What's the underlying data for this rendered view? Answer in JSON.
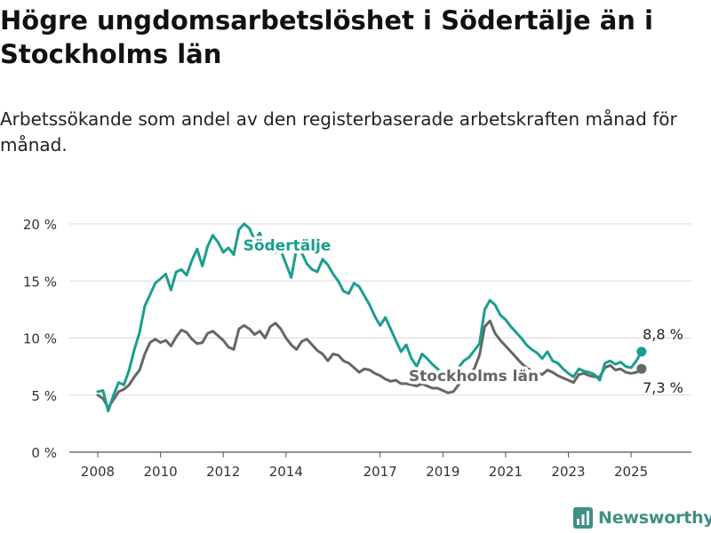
{
  "header": {
    "title": "Högre ungdomsarbetslöshet i Södertälje än i Stockholms län",
    "subtitle": "Arbetssökande som andel av den registerbaserade arbetskraften månad för månad."
  },
  "brand": {
    "name": "Newsworthy",
    "icon": "bar-chart-logo-icon",
    "color": "#3f8f83"
  },
  "chart_data": {
    "type": "line",
    "title": "Högre ungdomsarbetslöshet i Södertälje än i Stockholms län",
    "subtitle": "Arbetssökande som andel av den registerbaserade arbetskraften månad för månad.",
    "xlabel": "",
    "ylabel": "",
    "ylim": [
      0,
      21
    ],
    "y_unit": "%",
    "yticks": [
      0,
      5,
      10,
      15,
      20
    ],
    "ytick_labels": [
      "0 %",
      "5 %",
      "10 %",
      "15 %",
      "20 %"
    ],
    "xticks": [
      2008,
      2010,
      2012,
      2014,
      2017,
      2019,
      2021,
      2023,
      2025
    ],
    "xtick_labels": [
      "2008",
      "2010",
      "2012",
      "2014",
      "2017",
      "2019",
      "2021",
      "2023",
      "2025"
    ],
    "grid": true,
    "legend": "inline labels",
    "series": [
      {
        "name": "Södertälje",
        "color": "#1a9e8f",
        "end_label": "8,8 %",
        "points": [
          [
            "2008-01",
            5.3
          ],
          [
            "2008-03",
            5.4
          ],
          [
            "2008-05",
            3.6
          ],
          [
            "2008-07",
            5.0
          ],
          [
            "2008-09",
            6.1
          ],
          [
            "2008-11",
            5.9
          ],
          [
            "2009-01",
            7.2
          ],
          [
            "2009-03",
            9.0
          ],
          [
            "2009-05",
            10.5
          ],
          [
            "2009-07",
            12.8
          ],
          [
            "2009-09",
            13.8
          ],
          [
            "2009-11",
            14.8
          ],
          [
            "2010-01",
            15.2
          ],
          [
            "2010-03",
            15.6
          ],
          [
            "2010-05",
            14.2
          ],
          [
            "2010-07",
            15.8
          ],
          [
            "2010-09",
            16.0
          ],
          [
            "2010-11",
            15.5
          ],
          [
            "2011-01",
            16.8
          ],
          [
            "2011-03",
            17.8
          ],
          [
            "2011-05",
            16.3
          ],
          [
            "2011-07",
            18.0
          ],
          [
            "2011-09",
            19.0
          ],
          [
            "2011-11",
            18.4
          ],
          [
            "2012-01",
            17.5
          ],
          [
            "2012-03",
            17.9
          ],
          [
            "2012-05",
            17.3
          ],
          [
            "2012-07",
            19.5
          ],
          [
            "2012-09",
            20.0
          ],
          [
            "2012-11",
            19.6
          ],
          [
            "2013-01",
            18.6
          ],
          [
            "2013-03",
            19.2
          ],
          [
            "2013-05",
            18.0
          ],
          [
            "2013-07",
            18.6
          ],
          [
            "2013-09",
            17.5
          ],
          [
            "2013-11",
            17.7
          ],
          [
            "2014-01",
            16.5
          ],
          [
            "2014-03",
            15.3
          ],
          [
            "2014-05",
            17.8
          ],
          [
            "2014-07",
            17.5
          ],
          [
            "2014-09",
            16.5
          ],
          [
            "2014-11",
            16.0
          ],
          [
            "2015-01",
            15.8
          ],
          [
            "2015-03",
            16.9
          ],
          [
            "2015-05",
            16.4
          ],
          [
            "2015-07",
            15.6
          ],
          [
            "2015-09",
            15.0
          ],
          [
            "2015-11",
            14.1
          ],
          [
            "2016-01",
            13.9
          ],
          [
            "2016-03",
            14.8
          ],
          [
            "2016-05",
            14.5
          ],
          [
            "2016-07",
            13.7
          ],
          [
            "2016-09",
            12.9
          ],
          [
            "2016-11",
            11.9
          ],
          [
            "2017-01",
            11.1
          ],
          [
            "2017-03",
            11.8
          ],
          [
            "2017-05",
            10.8
          ],
          [
            "2017-07",
            9.8
          ],
          [
            "2017-09",
            8.8
          ],
          [
            "2017-11",
            9.4
          ],
          [
            "2018-01",
            8.2
          ],
          [
            "2018-03",
            7.5
          ],
          [
            "2018-05",
            8.6
          ],
          [
            "2018-07",
            8.2
          ],
          [
            "2018-09",
            7.7
          ],
          [
            "2018-11",
            7.3
          ],
          [
            "2019-01",
            6.8
          ],
          [
            "2019-03",
            6.2
          ],
          [
            "2019-05",
            6.5
          ],
          [
            "2019-07",
            7.4
          ],
          [
            "2019-09",
            8.0
          ],
          [
            "2019-11",
            8.3
          ],
          [
            "2020-01",
            8.9
          ],
          [
            "2020-03",
            9.5
          ],
          [
            "2020-05",
            12.5
          ],
          [
            "2020-07",
            13.3
          ],
          [
            "2020-09",
            12.9
          ],
          [
            "2020-11",
            12.0
          ],
          [
            "2021-01",
            11.6
          ],
          [
            "2021-03",
            11.0
          ],
          [
            "2021-05",
            10.5
          ],
          [
            "2021-07",
            10.0
          ],
          [
            "2021-09",
            9.4
          ],
          [
            "2021-11",
            9.0
          ],
          [
            "2022-01",
            8.7
          ],
          [
            "2022-03",
            8.2
          ],
          [
            "2022-05",
            8.8
          ],
          [
            "2022-07",
            8.0
          ],
          [
            "2022-09",
            7.8
          ],
          [
            "2022-11",
            7.3
          ],
          [
            "2023-01",
            6.9
          ],
          [
            "2023-03",
            6.6
          ],
          [
            "2023-05",
            7.3
          ],
          [
            "2023-07",
            7.1
          ],
          [
            "2023-09",
            7.0
          ],
          [
            "2023-11",
            6.8
          ],
          [
            "2024-01",
            6.3
          ],
          [
            "2024-03",
            7.8
          ],
          [
            "2024-05",
            8.0
          ],
          [
            "2024-07",
            7.7
          ],
          [
            "2024-09",
            7.9
          ],
          [
            "2024-11",
            7.5
          ],
          [
            "2025-01",
            7.4
          ],
          [
            "2025-03",
            8.0
          ],
          [
            "2025-05",
            8.8
          ]
        ]
      },
      {
        "name": "Stockholms län",
        "color": "#666666",
        "end_label": "7,3 %",
        "points": [
          [
            "2008-01",
            5.0
          ],
          [
            "2008-03",
            4.7
          ],
          [
            "2008-05",
            3.9
          ],
          [
            "2008-07",
            4.6
          ],
          [
            "2008-09",
            5.3
          ],
          [
            "2008-11",
            5.5
          ],
          [
            "2009-01",
            5.9
          ],
          [
            "2009-03",
            6.6
          ],
          [
            "2009-05",
            7.2
          ],
          [
            "2009-07",
            8.6
          ],
          [
            "2009-09",
            9.6
          ],
          [
            "2009-11",
            9.9
          ],
          [
            "2010-01",
            9.6
          ],
          [
            "2010-03",
            9.8
          ],
          [
            "2010-05",
            9.3
          ],
          [
            "2010-07",
            10.1
          ],
          [
            "2010-09",
            10.7
          ],
          [
            "2010-11",
            10.5
          ],
          [
            "2011-01",
            9.9
          ],
          [
            "2011-03",
            9.5
          ],
          [
            "2011-05",
            9.6
          ],
          [
            "2011-07",
            10.4
          ],
          [
            "2011-09",
            10.6
          ],
          [
            "2011-11",
            10.2
          ],
          [
            "2012-01",
            9.8
          ],
          [
            "2012-03",
            9.2
          ],
          [
            "2012-05",
            9.0
          ],
          [
            "2012-07",
            10.8
          ],
          [
            "2012-09",
            11.1
          ],
          [
            "2012-11",
            10.8
          ],
          [
            "2013-01",
            10.3
          ],
          [
            "2013-03",
            10.6
          ],
          [
            "2013-05",
            10.0
          ],
          [
            "2013-07",
            11.0
          ],
          [
            "2013-09",
            11.3
          ],
          [
            "2013-11",
            10.8
          ],
          [
            "2014-01",
            10.0
          ],
          [
            "2014-03",
            9.4
          ],
          [
            "2014-05",
            9.0
          ],
          [
            "2014-07",
            9.7
          ],
          [
            "2014-09",
            9.9
          ],
          [
            "2014-11",
            9.4
          ],
          [
            "2015-01",
            8.9
          ],
          [
            "2015-03",
            8.6
          ],
          [
            "2015-05",
            8.0
          ],
          [
            "2015-07",
            8.6
          ],
          [
            "2015-09",
            8.5
          ],
          [
            "2015-11",
            8.0
          ],
          [
            "2016-01",
            7.8
          ],
          [
            "2016-03",
            7.4
          ],
          [
            "2016-05",
            7.0
          ],
          [
            "2016-07",
            7.3
          ],
          [
            "2016-09",
            7.2
          ],
          [
            "2016-11",
            6.9
          ],
          [
            "2017-01",
            6.7
          ],
          [
            "2017-03",
            6.4
          ],
          [
            "2017-05",
            6.2
          ],
          [
            "2017-07",
            6.3
          ],
          [
            "2017-09",
            6.0
          ],
          [
            "2017-11",
            6.0
          ],
          [
            "2018-01",
            5.9
          ],
          [
            "2018-03",
            5.8
          ],
          [
            "2018-05",
            6.0
          ],
          [
            "2018-07",
            5.8
          ],
          [
            "2018-09",
            5.6
          ],
          [
            "2018-11",
            5.6
          ],
          [
            "2019-01",
            5.4
          ],
          [
            "2019-03",
            5.2
          ],
          [
            "2019-05",
            5.3
          ],
          [
            "2019-07",
            5.9
          ],
          [
            "2019-09",
            6.5
          ],
          [
            "2019-11",
            6.9
          ],
          [
            "2020-01",
            7.3
          ],
          [
            "2020-03",
            8.5
          ],
          [
            "2020-05",
            11.0
          ],
          [
            "2020-07",
            11.5
          ],
          [
            "2020-09",
            10.4
          ],
          [
            "2020-11",
            9.8
          ],
          [
            "2021-01",
            9.3
          ],
          [
            "2021-03",
            8.8
          ],
          [
            "2021-05",
            8.3
          ],
          [
            "2021-07",
            7.8
          ],
          [
            "2021-09",
            7.4
          ],
          [
            "2021-11",
            7.1
          ],
          [
            "2022-01",
            7.0
          ],
          [
            "2022-03",
            6.8
          ],
          [
            "2022-05",
            7.2
          ],
          [
            "2022-07",
            7.0
          ],
          [
            "2022-09",
            6.7
          ],
          [
            "2022-11",
            6.5
          ],
          [
            "2023-01",
            6.3
          ],
          [
            "2023-03",
            6.1
          ],
          [
            "2023-05",
            6.8
          ],
          [
            "2023-07",
            6.9
          ],
          [
            "2023-09",
            6.7
          ],
          [
            "2023-11",
            6.6
          ],
          [
            "2024-01",
            6.6
          ],
          [
            "2024-03",
            7.4
          ],
          [
            "2024-05",
            7.6
          ],
          [
            "2024-07",
            7.2
          ],
          [
            "2024-09",
            7.3
          ],
          [
            "2024-11",
            7.0
          ],
          [
            "2025-01",
            6.9
          ],
          [
            "2025-03",
            7.0
          ],
          [
            "2025-05",
            7.3
          ]
        ]
      }
    ]
  }
}
